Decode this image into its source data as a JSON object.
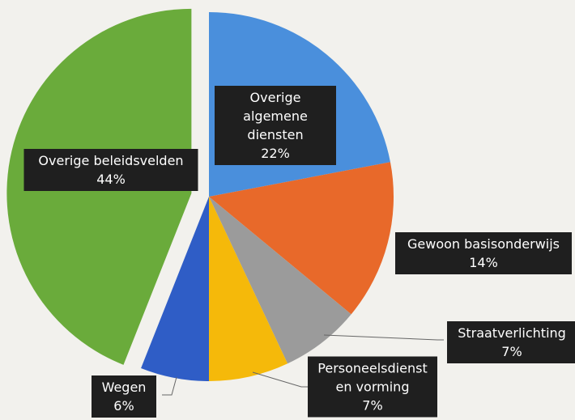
{
  "chart_data": {
    "type": "pie",
    "categories": [
      "Overige algemene diensten",
      "Gewoon basisonderwijs",
      "Straatverlichting",
      "Personeelsdienst en vorming",
      "Wegen",
      "Overige beleidsvelden"
    ],
    "values": [
      22,
      14,
      7,
      7,
      6,
      44
    ],
    "value_labels": [
      "22%",
      "14%",
      "7%",
      "7%",
      "6%",
      "44%"
    ],
    "colors": [
      "#4a8fdc",
      "#e8692a",
      "#9b9b9b",
      "#f5b90a",
      "#2f5dc6",
      "#6aab3b"
    ]
  }
}
